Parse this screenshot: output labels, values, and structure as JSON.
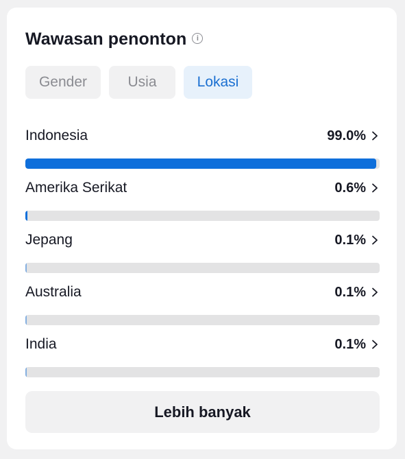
{
  "header": {
    "title": "Wawasan penonton",
    "info_icon": "info-icon"
  },
  "tabs": [
    {
      "label": "Gender",
      "active": false
    },
    {
      "label": "Usia",
      "active": false
    },
    {
      "label": "Lokasi",
      "active": true
    }
  ],
  "locations": [
    {
      "label": "Indonesia",
      "value": "99.0%",
      "fraction": 0.99
    },
    {
      "label": "Amerika Serikat",
      "value": "0.6%",
      "fraction": 0.006
    },
    {
      "label": "Jepang",
      "value": "0.1%",
      "fraction": 0.001
    },
    {
      "label": "Australia",
      "value": "0.1%",
      "fraction": 0.001
    },
    {
      "label": "India",
      "value": "0.1%",
      "fraction": 0.001
    }
  ],
  "more_button": {
    "label": "Lebih banyak"
  },
  "colors": {
    "accent": "#0f6fdb",
    "track": "#e3e3e4",
    "active_tab_bg": "#e7f1fb"
  }
}
